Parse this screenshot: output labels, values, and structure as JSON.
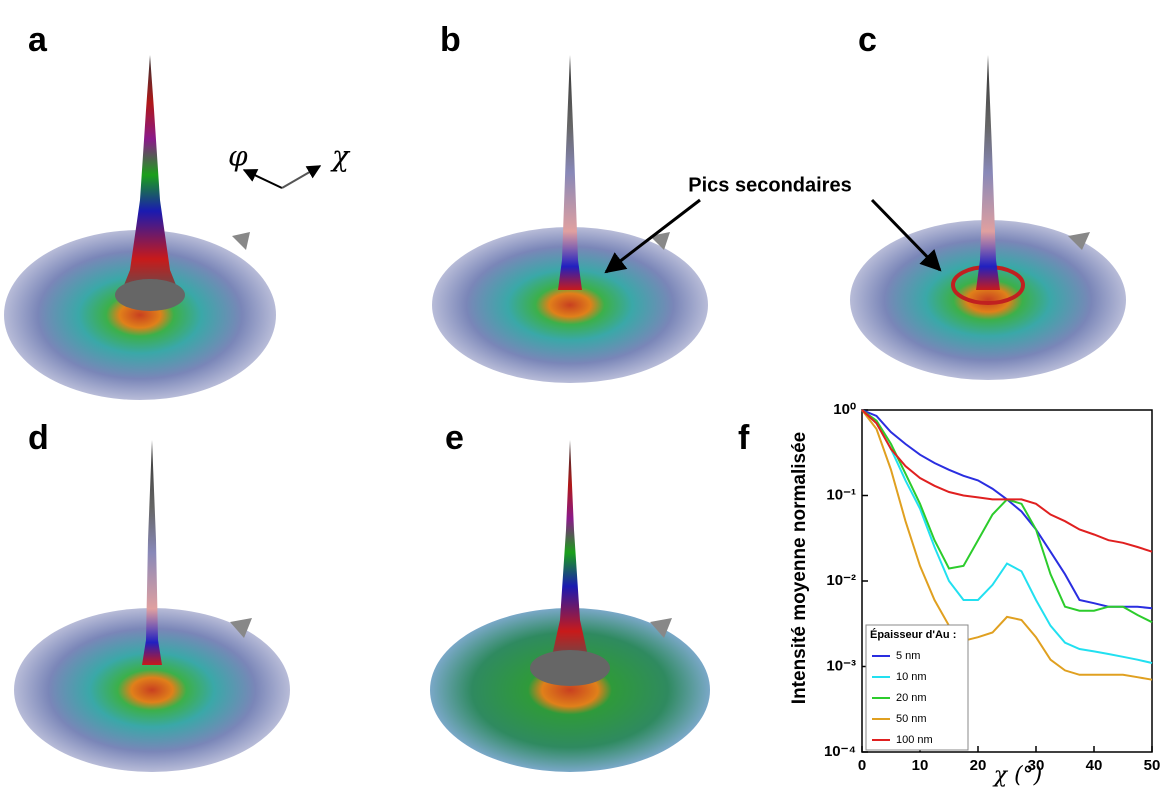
{
  "panels": [
    "a",
    "b",
    "c",
    "d",
    "e",
    "f"
  ],
  "axis_labels": [
    "φ",
    "χ"
  ],
  "annotation": "Pics secondaires",
  "chart_data": {
    "type": "line",
    "ylabel": "Intensité moyenne normalisée",
    "xlabel": "χ (°)",
    "legend_title": "Épaisseur d'Au :",
    "legend": "lower-left",
    "log_y": true,
    "x": [
      0,
      2.5,
      5,
      7.5,
      10,
      12.5,
      15,
      17.5,
      20,
      22.5,
      25,
      27.5,
      30,
      32.5,
      35,
      37.5,
      40,
      42.5,
      45,
      47.5,
      50
    ],
    "xlim": [
      0,
      50
    ],
    "xticks": [
      0,
      10,
      20,
      30,
      40,
      50
    ],
    "ylim": [
      0.0001,
      1
    ],
    "yticks": [
      {
        "value": 0.0001,
        "label": "10⁻⁴"
      },
      {
        "value": 0.001,
        "label": "10⁻³"
      },
      {
        "value": 0.01,
        "label": "10⁻²"
      },
      {
        "value": 0.1,
        "label": "10⁻¹"
      },
      {
        "value": 1,
        "label": "10⁰"
      }
    ],
    "series": [
      {
        "name": "5 nm",
        "color": "#2a2ee0",
        "values": [
          1,
          0.85,
          0.55,
          0.4,
          0.3,
          0.24,
          0.2,
          0.17,
          0.15,
          0.12,
          0.09,
          0.065,
          0.04,
          0.022,
          0.012,
          0.006,
          0.0055,
          0.005,
          0.005,
          0.005,
          0.0048
        ]
      },
      {
        "name": "10 nm",
        "color": "#22e0f0",
        "values": [
          1,
          0.7,
          0.35,
          0.15,
          0.07,
          0.025,
          0.01,
          0.006,
          0.006,
          0.009,
          0.016,
          0.013,
          0.006,
          0.003,
          0.0019,
          0.0016,
          0.0015,
          0.0014,
          0.0013,
          0.0012,
          0.0011
        ]
      },
      {
        "name": "20 nm",
        "color": "#2ccc2c",
        "values": [
          1,
          0.75,
          0.4,
          0.18,
          0.08,
          0.03,
          0.014,
          0.015,
          0.03,
          0.06,
          0.09,
          0.08,
          0.04,
          0.012,
          0.005,
          0.0045,
          0.0045,
          0.005,
          0.005,
          0.004,
          0.0033
        ]
      },
      {
        "name": "50 nm",
        "color": "#e0a020",
        "values": [
          1,
          0.6,
          0.2,
          0.05,
          0.015,
          0.006,
          0.003,
          0.002,
          0.0022,
          0.0025,
          0.0038,
          0.0035,
          0.0022,
          0.0012,
          0.0009,
          0.0008,
          0.0008,
          0.0008,
          0.0008,
          0.00075,
          0.0007
        ]
      },
      {
        "name": "100 nm",
        "color": "#e02020",
        "values": [
          1,
          0.7,
          0.35,
          0.22,
          0.16,
          0.13,
          0.11,
          0.1,
          0.095,
          0.09,
          0.09,
          0.09,
          0.08,
          0.06,
          0.05,
          0.04,
          0.035,
          0.03,
          0.028,
          0.025,
          0.022
        ]
      }
    ]
  }
}
